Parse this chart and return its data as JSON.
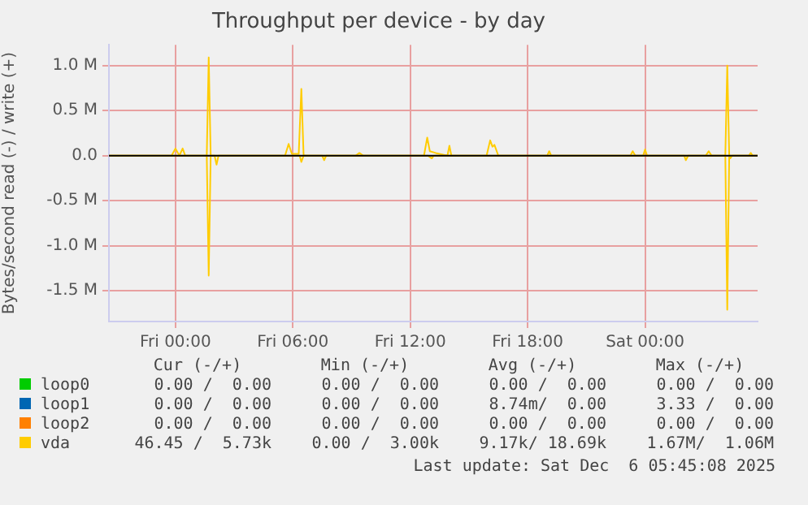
{
  "chart_data": {
    "type": "line",
    "title": "Throughput per device - by day",
    "ylabel": "Bytes/second read (-) / write (+)",
    "xlim": [
      "2025-12-04T20:36",
      "2025-12-06T05:45"
    ],
    "xticks": [
      {
        "value": "2025-12-05T00:00",
        "label": "Fri 00:00"
      },
      {
        "value": "2025-12-05T06:00",
        "label": "Fri 06:00"
      },
      {
        "value": "2025-12-05T12:00",
        "label": "Fri 12:00"
      },
      {
        "value": "2025-12-05T18:00",
        "label": "Fri 18:00"
      },
      {
        "value": "2025-12-06T00:00",
        "label": "Sat 00:00"
      }
    ],
    "ylim": [
      -1840000,
      1230000
    ],
    "yticks": [
      {
        "value": -1500000,
        "label": "-1.5 M"
      },
      {
        "value": -1000000,
        "label": "-1.0 M"
      },
      {
        "value": -500000,
        "label": "-0.5 M"
      },
      {
        "value": 0,
        "label": "0.0"
      },
      {
        "value": 500000,
        "label": "0.5 M"
      },
      {
        "value": 1000000,
        "label": "1.0 M"
      }
    ],
    "grid": true,
    "legend": "bottom",
    "marker": "none",
    "line_style": "solid",
    "ref_lines": [
      {
        "axis": "y",
        "value": 0,
        "color": "#000000"
      }
    ],
    "series": [
      {
        "name": "loop0",
        "color": "#00cc00"
      },
      {
        "name": "loop1",
        "color": "#0066b3"
      },
      {
        "name": "loop2",
        "color": "#ff8000"
      },
      {
        "name": "vda",
        "color": "#ffcc00",
        "x": [
          "2025-12-04T20:36",
          "2025-12-04T23:48",
          "2025-12-05T00:00",
          "2025-12-05T00:12",
          "2025-12-05T00:22",
          "2025-12-05T00:30",
          "2025-12-05T01:36",
          "2025-12-05T01:42",
          "2025-12-05T01:48",
          "2025-12-05T05:36",
          "2025-12-05T05:47",
          "2025-12-05T05:57",
          "2025-12-05T06:18",
          "2025-12-05T06:26",
          "2025-12-05T06:33",
          "2025-12-05T09:12",
          "2025-12-05T09:24",
          "2025-12-05T09:36",
          "2025-12-05T12:42",
          "2025-12-05T12:52",
          "2025-12-05T13:00",
          "2025-12-05T13:18",
          "2025-12-05T13:54",
          "2025-12-05T14:00",
          "2025-12-05T14:06",
          "2025-12-05T15:54",
          "2025-12-05T16:05",
          "2025-12-05T16:12",
          "2025-12-05T16:18",
          "2025-12-05T16:30",
          "2025-12-05T19:00",
          "2025-12-05T19:06",
          "2025-12-05T19:12",
          "2025-12-05T23:15",
          "2025-12-05T23:22",
          "2025-12-05T23:30",
          "2025-12-05T23:54",
          "2025-12-06T00:00",
          "2025-12-06T00:06",
          "2025-12-06T03:06",
          "2025-12-06T03:15",
          "2025-12-06T03:24",
          "2025-12-06T04:06",
          "2025-12-06T04:12",
          "2025-12-06T04:18",
          "2025-12-06T05:18",
          "2025-12-06T05:24",
          "2025-12-06T05:30",
          "2025-12-06T05:45"
        ],
        "values": [
          0,
          0,
          80000,
          0,
          80000,
          0,
          0,
          1090000,
          0,
          0,
          130000,
          20000,
          20000,
          740000,
          0,
          0,
          30000,
          0,
          0,
          200000,
          50000,
          30000,
          0,
          110000,
          0,
          0,
          170000,
          100000,
          120000,
          0,
          0,
          50000,
          0,
          0,
          50000,
          0,
          0,
          70000,
          0,
          0,
          50000,
          0,
          0,
          1000000,
          0,
          0,
          30000,
          0,
          0
        ]
      },
      {
        "color": "#ffcc00",
        "x": [
          "2025-12-04T20:36",
          "2025-12-05T01:36",
          "2025-12-05T01:42",
          "2025-12-05T01:48",
          "2025-12-05T02:00",
          "2025-12-05T02:06",
          "2025-12-05T02:12",
          "2025-12-05T06:21",
          "2025-12-05T06:26",
          "2025-12-05T06:33",
          "2025-12-05T07:30",
          "2025-12-05T07:36",
          "2025-12-05T07:42",
          "2025-12-05T12:54",
          "2025-12-05T13:06",
          "2025-12-05T13:12",
          "2025-12-06T02:00",
          "2025-12-06T02:05",
          "2025-12-06T02:12",
          "2025-12-06T04:06",
          "2025-12-06T04:12",
          "2025-12-06T04:18",
          "2025-12-06T04:21",
          "2025-12-06T04:27",
          "2025-12-06T05:45"
        ],
        "values": [
          0,
          0,
          -1330000,
          0,
          0,
          -100000,
          0,
          0,
          -70000,
          0,
          0,
          -50000,
          0,
          0,
          -30000,
          0,
          0,
          -50000,
          0,
          0,
          -1710000,
          0,
          -30000,
          0,
          0
        ]
      }
    ],
    "annotations": [
      "Cur (-/+)",
      "Min (-/+)",
      "Avg (-/+)",
      "Max (-/+)",
      "0.00 /  0.00",
      "0.00 /  0.00",
      "0.00 /  0.00",
      "0.00 /  0.00",
      "0.00 /  0.00",
      "0.00 /  0.00",
      "8.74m/  0.00",
      "3.33 /  0.00",
      "0.00 /  0.00",
      "0.00 /  0.00",
      "0.00 /  0.00",
      "0.00 /  0.00",
      "46.45 /  5.73k",
      "0.00 /  3.00k",
      "9.17k/ 18.69k",
      "1.67M/  1.06M",
      "Last update: Sat Dec  6 05:45:08 2025"
    ]
  }
}
